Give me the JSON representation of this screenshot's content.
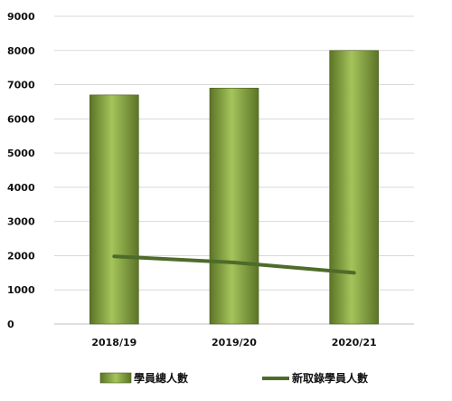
{
  "chart_data": {
    "type": "bar",
    "categories": [
      "2018/19",
      "2019/20",
      "2020/21"
    ],
    "series": [
      {
        "name": "學員總人數",
        "kind": "bar",
        "values": [
          6700,
          6900,
          8000
        ]
      },
      {
        "name": "新取錄學員人數",
        "kind": "line",
        "values": [
          1980,
          1800,
          1500
        ]
      }
    ],
    "ylim": [
      0,
      9000
    ],
    "yticks": [
      0,
      1000,
      2000,
      3000,
      4000,
      5000,
      6000,
      7000,
      8000,
      9000
    ],
    "grid": true,
    "legend_position": "bottom",
    "colors": {
      "bar": "#7f9f3a",
      "bar_light": "#a4c35a",
      "bar_dark": "#556b22",
      "line": "#4e6b2a"
    }
  }
}
